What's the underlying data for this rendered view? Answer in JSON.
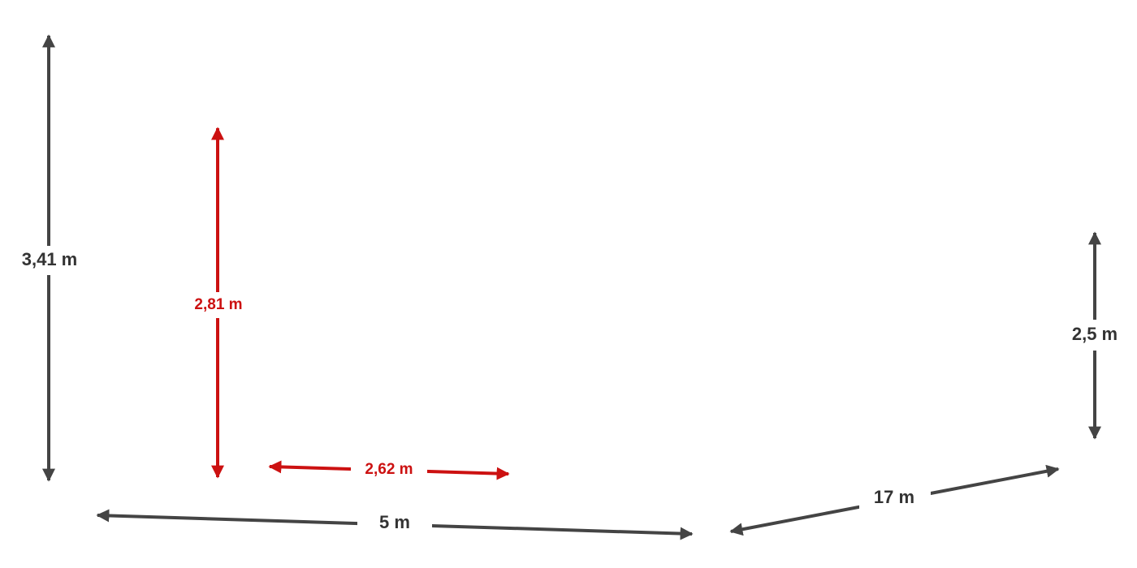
{
  "colors": {
    "dark": "#444444",
    "accent": "#cc1111",
    "background": "#ffffff"
  },
  "dimensions": {
    "left_height": {
      "label": "3,41 m",
      "color": "dark"
    },
    "inner_height": {
      "label": "2,81 m",
      "color": "accent"
    },
    "right_height": {
      "label": "2,5 m",
      "color": "dark"
    },
    "inner_width": {
      "label": "2,62 m",
      "color": "accent"
    },
    "front_width": {
      "label": "5 m",
      "color": "dark"
    },
    "side_length": {
      "label": "17 m",
      "color": "dark"
    }
  }
}
